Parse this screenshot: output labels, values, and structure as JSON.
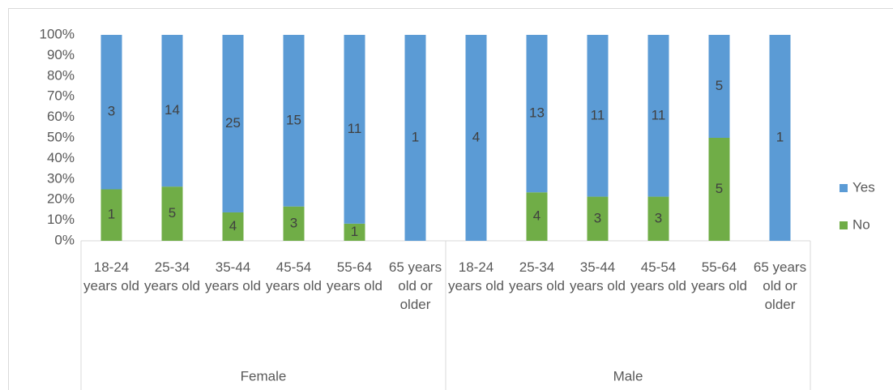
{
  "chart_data": {
    "type": "bar",
    "percent_stacked": true,
    "categories": [
      "18-24 years old",
      "25-34 years old",
      "35-44 years old",
      "45-54 years old",
      "55-64 years old",
      "65 years old or older",
      "18-24 years old",
      "25-34 years old",
      "35-44 years old",
      "45-54 years old",
      "55-64 years old",
      "65 years old or older"
    ],
    "category_groups": [
      "Female",
      "Male"
    ],
    "series": [
      {
        "name": "No",
        "color": "#70ad47",
        "values": [
          1,
          5,
          4,
          3,
          1,
          0,
          0,
          4,
          3,
          3,
          5,
          0
        ]
      },
      {
        "name": "Yes",
        "color": "#5b9bd5",
        "values": [
          3,
          14,
          25,
          15,
          11,
          1,
          4,
          13,
          11,
          11,
          5,
          1
        ]
      }
    ],
    "ylim": [
      0,
      100
    ],
    "yticks": [
      {
        "value": 0,
        "label": "0%"
      },
      {
        "value": 10,
        "label": "10%"
      },
      {
        "value": 20,
        "label": "20%"
      },
      {
        "value": 30,
        "label": "30%"
      },
      {
        "value": 40,
        "label": "40%"
      },
      {
        "value": 50,
        "label": "50%"
      },
      {
        "value": 60,
        "label": "60%"
      },
      {
        "value": 70,
        "label": "70%"
      },
      {
        "value": 80,
        "label": "80%"
      },
      {
        "value": 90,
        "label": "90%"
      },
      {
        "value": 100,
        "label": "100%"
      }
    ],
    "legend": "right"
  }
}
